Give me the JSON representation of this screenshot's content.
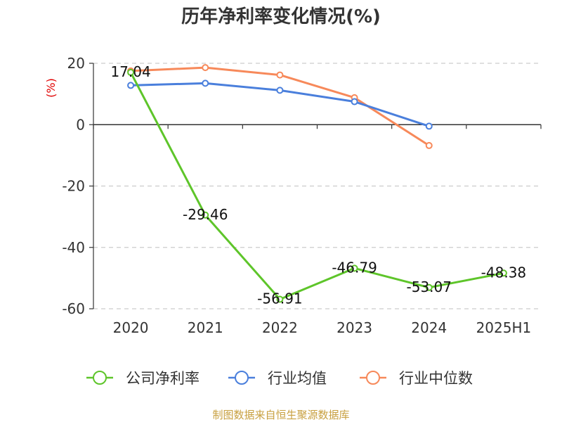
{
  "chart_data": {
    "type": "line",
    "title": "历年净利率变化情况(%)",
    "ylabel": "(%)",
    "xlabel": "",
    "categories": [
      "2020",
      "2021",
      "2022",
      "2023",
      "2024",
      "2025H1"
    ],
    "ylim": [
      -60,
      20
    ],
    "yticks": [
      20,
      0,
      -20,
      -40,
      -60
    ],
    "grid": true,
    "legend_position": "bottom",
    "series": [
      {
        "name": "公司净利率",
        "color": "#5ec52a",
        "values": [
          17.04,
          -29.46,
          -56.91,
          -46.79,
          -53.07,
          -48.38
        ],
        "labels": [
          "17.04",
          "-29.46",
          "-56.91",
          "-46.79",
          "-53.07",
          "-48.38"
        ]
      },
      {
        "name": "行业均值",
        "color": "#4a7fdc",
        "values": [
          12.8,
          13.5,
          11.2,
          7.5,
          -0.5,
          null
        ]
      },
      {
        "name": "行业中位数",
        "color": "#f7895a",
        "values": [
          17.5,
          18.6,
          16.2,
          8.8,
          -6.8,
          null
        ]
      }
    ]
  },
  "source": "制图数据来自恒生聚源数据库"
}
